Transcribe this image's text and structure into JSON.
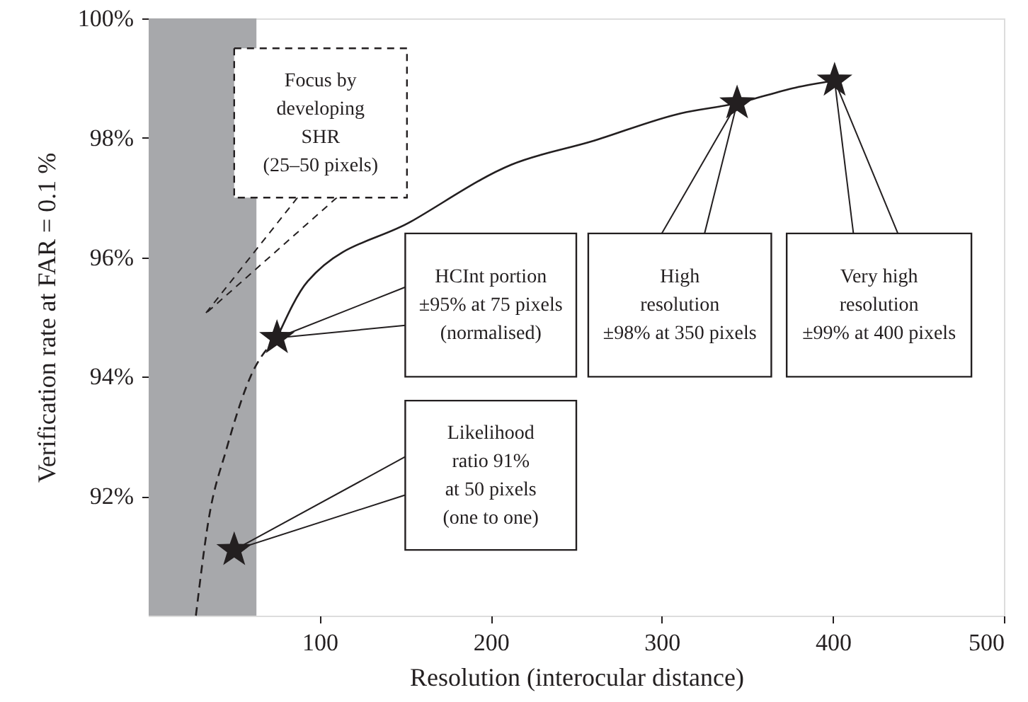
{
  "chart_data": {
    "type": "line",
    "xlabel": "Resolution (interocular distance)",
    "ylabel": "Verification rate at FAR = 0.1 %",
    "xlim": [
      0,
      500
    ],
    "ylim": [
      90,
      100
    ],
    "xticks": [
      100,
      200,
      300,
      400,
      500
    ],
    "yticks": [
      {
        "value": 92,
        "label": "92%"
      },
      {
        "value": 94,
        "label": "94%"
      },
      {
        "value": 96,
        "label": "96%"
      },
      {
        "value": 98,
        "label": "98%"
      },
      {
        "value": 100,
        "label": "100%"
      }
    ],
    "grid": false,
    "bands": [
      {
        "axis": "x",
        "from": 0,
        "to": 63,
        "color": "#a7a8ab"
      }
    ],
    "series": [
      {
        "type": "line",
        "line_style": "dashed",
        "color": "#231f20",
        "x": [
          27.6,
          35,
          45.6,
          59.5,
          75
        ],
        "values": [
          90,
          91.6,
          92.8,
          94.0,
          94.65
        ]
      },
      {
        "type": "line",
        "line_style": "solid",
        "color": "#231f20",
        "x": [
          75,
          93,
          153.5,
          212,
          259,
          311,
          344,
          378,
          401
        ],
        "values": [
          94.65,
          95.6,
          96.6,
          97.55,
          97.94,
          98.41,
          98.58,
          98.84,
          98.96
        ]
      },
      {
        "type": "scatter",
        "marker": "star",
        "color": "#231f20",
        "x": [
          50,
          75,
          344,
          401
        ],
        "values": [
          91.1,
          94.65,
          98.58,
          98.96
        ]
      }
    ],
    "annotations": [
      "Focus by\ndeveloping\nSHR\n(25–50 pixels)",
      {
        "text": "HCInt portion\n±95% at 75 pixels\n(normalised)",
        "x": 75,
        "y": 94.65
      },
      "Likelihood\nratio 91%\nat 50 pixels\n(one to one)",
      "High\nresolution\n±98% at 350 pixels",
      "Very high\nresolution\n±99% at 400 pixels"
    ]
  }
}
